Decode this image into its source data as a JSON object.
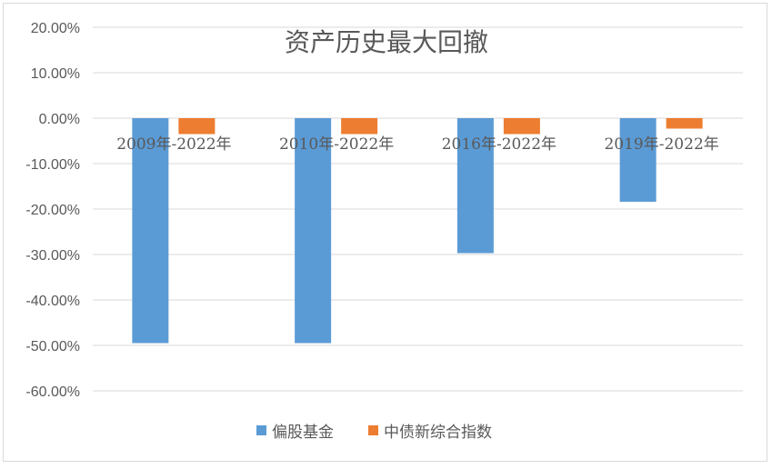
{
  "chart_data": {
    "type": "bar",
    "title": "资产历史最大回撤",
    "categories": [
      "2009年-2022年",
      "2010年-2022年",
      "2016年-2022年",
      "2019年-2022年"
    ],
    "series": [
      {
        "name": "偏股基金",
        "color": "#5B9BD5",
        "values": [
          -49.5,
          -49.5,
          -29.7,
          -18.4
        ]
      },
      {
        "name": "中债新综合指数",
        "color": "#ED7D31",
        "values": [
          -3.5,
          -3.5,
          -3.5,
          -2.3
        ]
      }
    ],
    "ylim": [
      -60,
      20
    ],
    "yticks": [
      20,
      10,
      0,
      -10,
      -20,
      -30,
      -40,
      -50,
      -60
    ],
    "ytick_labels": [
      "20.00%",
      "10.00%",
      "0.00%",
      "-10.00%",
      "-20.00%",
      "-30.00%",
      "-40.00%",
      "-50.00%",
      "-60.00%"
    ],
    "grid": true,
    "legend_position": "bottom"
  }
}
